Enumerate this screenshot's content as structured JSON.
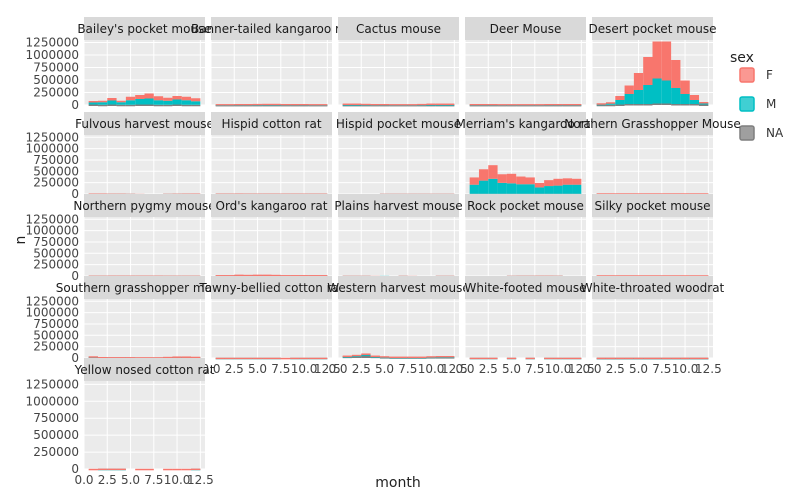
{
  "chart_data": {
    "type": "bar",
    "layout": "facet_wrap",
    "xlabel": "month",
    "ylabel": "n",
    "xlim": [
      0,
      13
    ],
    "ylim": [
      0,
      1300000
    ],
    "x_ticks": [
      "0.0",
      "2.5",
      "5.0",
      "7.5",
      "10.0",
      "12.5"
    ],
    "x_tick_values": [
      0,
      2.5,
      5,
      7.5,
      10,
      12.5
    ],
    "y_ticks": [
      "0",
      "250000",
      "500000",
      "750000",
      "1000000",
      "1250000"
    ],
    "y_tick_values": [
      0,
      250000,
      500000,
      750000,
      1000000,
      1250000
    ],
    "legend": {
      "title": "sex",
      "placement": "right",
      "entries": [
        {
          "label": "F",
          "color": "#F8766D"
        },
        {
          "label": "M",
          "color": "#00BFC4"
        },
        {
          "label": "NA",
          "color": "#7F7F7F"
        }
      ]
    },
    "colors": {
      "F": "#F8766D",
      "M": "#00BFC4",
      "NA": "#7F7F7F"
    },
    "stack_order": [
      "NA",
      "M",
      "F"
    ],
    "months": [
      1,
      2,
      3,
      4,
      5,
      6,
      7,
      8,
      9,
      10,
      11,
      12
    ],
    "facets": [
      {
        "title": "Bailey's pocket mouse",
        "M": [
          40000,
          50000,
          80000,
          50000,
          90000,
          110000,
          120000,
          90000,
          80000,
          100000,
          90000,
          70000
        ],
        "F": [
          30000,
          30000,
          50000,
          30000,
          70000,
          80000,
          100000,
          80000,
          60000,
          70000,
          70000,
          60000
        ],
        "NA": [
          10000,
          5000,
          10000,
          5000,
          5000,
          10000,
          10000,
          5000,
          5000,
          10000,
          5000,
          5000
        ]
      },
      {
        "title": "Banner-tailed kangaroo rat",
        "M": [
          8000,
          8000,
          10000,
          10000,
          10000,
          12000,
          12000,
          10000,
          10000,
          10000,
          8000,
          8000
        ],
        "F": [
          8000,
          8000,
          8000,
          8000,
          10000,
          10000,
          10000,
          8000,
          8000,
          8000,
          8000,
          8000
        ],
        "NA": [
          2000,
          2000,
          2000,
          2000,
          2000,
          2000,
          2000,
          2000,
          2000,
          2000,
          2000,
          2000
        ]
      },
      {
        "title": "Cactus mouse",
        "M": [
          15000,
          15000,
          12000,
          10000,
          10000,
          8000,
          8000,
          8000,
          10000,
          15000,
          15000,
          15000
        ],
        "F": [
          12000,
          12000,
          10000,
          8000,
          8000,
          8000,
          8000,
          8000,
          10000,
          12000,
          12000,
          12000
        ],
        "NA": [
          2000,
          2000,
          2000,
          2000,
          2000,
          2000,
          2000,
          2000,
          2000,
          2000,
          2000,
          2000
        ]
      },
      {
        "title": "Deer Mouse",
        "M": [
          10000,
          10000,
          10000,
          8000,
          8000,
          8000,
          8000,
          8000,
          10000,
          10000,
          10000,
          10000
        ],
        "F": [
          8000,
          8000,
          8000,
          8000,
          8000,
          8000,
          8000,
          8000,
          8000,
          8000,
          8000,
          8000
        ],
        "NA": [
          2000,
          2000,
          2000,
          2000,
          2000,
          2000,
          2000,
          2000,
          2000,
          2000,
          2000,
          2000
        ]
      },
      {
        "title": "Desert pocket mouse",
        "M": [
          20000,
          30000,
          90000,
          200000,
          280000,
          380000,
          500000,
          460000,
          320000,
          200000,
          80000,
          30000
        ],
        "F": [
          10000,
          20000,
          80000,
          170000,
          340000,
          560000,
          740000,
          780000,
          560000,
          270000,
          100000,
          20000
        ],
        "NA": [
          5000,
          5000,
          10000,
          20000,
          20000,
          20000,
          30000,
          30000,
          20000,
          20000,
          20000,
          10000
        ]
      },
      {
        "title": "Fulvous harvest mouse",
        "M": [
          5000,
          5000,
          4000,
          4000,
          3000,
          0,
          0,
          0,
          3000,
          4000,
          5000,
          5000
        ],
        "F": [
          5000,
          5000,
          4000,
          4000,
          3000,
          3000,
          0,
          0,
          3000,
          4000,
          4000,
          5000
        ],
        "NA": [
          0,
          0,
          0,
          0,
          0,
          0,
          0,
          0,
          0,
          0,
          0,
          0
        ]
      },
      {
        "title": "Hispid cotton rat",
        "M": [
          4000,
          4000,
          4000,
          4000,
          4000,
          4000,
          4000,
          4000,
          4000,
          4000,
          4000,
          4000
        ],
        "F": [
          4000,
          4000,
          4000,
          4000,
          4000,
          4000,
          4000,
          4000,
          4000,
          4000,
          4000,
          4000
        ],
        "NA": [
          1000,
          1000,
          2000,
          1000,
          1000,
          1000,
          1000,
          1000,
          1000,
          1000,
          1000,
          1000
        ]
      },
      {
        "title": "Hispid pocket mouse",
        "M": [
          0,
          0,
          0,
          0,
          3000,
          3000,
          3000,
          3000,
          3000,
          3000,
          3000,
          3000
        ],
        "F": [
          0,
          0,
          0,
          0,
          3000,
          3000,
          3000,
          3000,
          3000,
          3000,
          3000,
          3000
        ],
        "NA": [
          0,
          0,
          0,
          0,
          0,
          0,
          0,
          0,
          0,
          0,
          0,
          0
        ]
      },
      {
        "title": "Merriam's kangaroo rat",
        "M": [
          200000,
          290000,
          330000,
          240000,
          230000,
          210000,
          210000,
          140000,
          170000,
          180000,
          200000,
          200000
        ],
        "F": [
          160000,
          250000,
          300000,
          190000,
          210000,
          170000,
          150000,
          100000,
          130000,
          150000,
          140000,
          130000
        ],
        "NA": [
          5000,
          5000,
          5000,
          5000,
          5000,
          5000,
          5000,
          5000,
          5000,
          5000,
          5000,
          5000
        ]
      },
      {
        "title": "Northern Grasshopper Mouse",
        "M": [
          8000,
          8000,
          8000,
          8000,
          8000,
          8000,
          8000,
          8000,
          8000,
          8000,
          8000,
          8000
        ],
        "F": [
          6000,
          6000,
          6000,
          6000,
          6000,
          6000,
          6000,
          6000,
          6000,
          6000,
          6000,
          6000
        ],
        "NA": [
          1000,
          1000,
          1000,
          1000,
          1000,
          1000,
          1000,
          1000,
          1000,
          1000,
          1000,
          1000
        ]
      },
      {
        "title": "Northern pygmy mouse",
        "M": [
          4000,
          4000,
          5000,
          5000,
          5000,
          5000,
          5000,
          5000,
          4000,
          4000,
          4000,
          4000
        ],
        "F": [
          4000,
          4000,
          4000,
          4000,
          4000,
          4000,
          4000,
          4000,
          4000,
          4000,
          4000,
          4000
        ],
        "NA": [
          0,
          0,
          0,
          0,
          0,
          0,
          0,
          0,
          0,
          0,
          0,
          0
        ]
      },
      {
        "title": "Ord's kangaroo rat",
        "M": [
          10000,
          10000,
          12000,
          12000,
          12000,
          12000,
          12000,
          10000,
          10000,
          10000,
          10000,
          10000
        ],
        "F": [
          8000,
          8000,
          10000,
          10000,
          10000,
          10000,
          10000,
          8000,
          8000,
          8000,
          8000,
          8000
        ],
        "NA": [
          2000,
          2000,
          8000,
          4000,
          8000,
          8000,
          4000,
          2000,
          2000,
          2000,
          2000,
          2000
        ]
      },
      {
        "title": "Plains harvest mouse",
        "M": [
          3000,
          3000,
          3000,
          0,
          3000,
          0,
          3000,
          0,
          0,
          0,
          3000,
          3000
        ],
        "F": [
          3000,
          3000,
          3000,
          3000,
          0,
          0,
          3000,
          3000,
          0,
          0,
          3000,
          3000
        ],
        "NA": [
          0,
          0,
          0,
          0,
          0,
          0,
          0,
          0,
          0,
          0,
          0,
          0
        ]
      },
      {
        "title": "Rock pocket mouse",
        "M": [
          0,
          0,
          0,
          0,
          3000,
          4000,
          4000,
          4000,
          4000,
          4000,
          0,
          0
        ],
        "F": [
          0,
          0,
          0,
          0,
          3000,
          3000,
          3000,
          4000,
          4000,
          3000,
          0,
          0
        ],
        "NA": [
          0,
          0,
          0,
          0,
          0,
          0,
          0,
          0,
          0,
          0,
          0,
          0
        ]
      },
      {
        "title": "Silky pocket mouse",
        "M": [
          8000,
          8000,
          8000,
          8000,
          8000,
          8000,
          8000,
          8000,
          8000,
          8000,
          8000,
          8000
        ],
        "F": [
          6000,
          6000,
          6000,
          6000,
          6000,
          6000,
          6000,
          6000,
          6000,
          6000,
          6000,
          6000
        ],
        "NA": [
          2000,
          2000,
          2000,
          2000,
          2000,
          2000,
          2000,
          2000,
          2000,
          2000,
          2000,
          2000
        ]
      },
      {
        "title": "Southern grasshopper mouse",
        "M": [
          10000,
          8000,
          8000,
          8000,
          8000,
          8000,
          8000,
          8000,
          10000,
          12000,
          12000,
          10000
        ],
        "F": [
          8000,
          6000,
          6000,
          6000,
          6000,
          6000,
          6000,
          6000,
          8000,
          10000,
          10000,
          8000
        ],
        "NA": [
          20000,
          8000,
          6000,
          6000,
          6000,
          4000,
          4000,
          4000,
          8000,
          12000,
          12000,
          10000
        ]
      },
      {
        "title": "Tawny-bellied cotton rat",
        "M": [
          4000,
          4000,
          4000,
          4000,
          4000,
          4000,
          4000,
          0,
          4000,
          4000,
          4000,
          4000
        ],
        "F": [
          3000,
          3000,
          3000,
          3000,
          3000,
          3000,
          3000,
          4000,
          3000,
          3000,
          3000,
          3000
        ],
        "NA": [
          0,
          0,
          0,
          0,
          0,
          0,
          0,
          0,
          0,
          0,
          0,
          0
        ]
      },
      {
        "title": "Western harvest mouse",
        "M": [
          12000,
          15000,
          20000,
          12000,
          10000,
          8000,
          8000,
          8000,
          8000,
          10000,
          12000,
          12000
        ],
        "F": [
          12000,
          15000,
          20000,
          12000,
          10000,
          8000,
          8000,
          8000,
          8000,
          10000,
          12000,
          12000
        ],
        "NA": [
          30000,
          40000,
          60000,
          30000,
          20000,
          15000,
          15000,
          15000,
          15000,
          20000,
          20000,
          20000
        ]
      },
      {
        "title": "White-footed mouse",
        "M": [
          4000,
          4000,
          4000,
          0,
          4000,
          0,
          4000,
          0,
          4000,
          4000,
          4000,
          4000
        ],
        "F": [
          3000,
          3000,
          3000,
          0,
          3000,
          0,
          3000,
          0,
          3000,
          3000,
          3000,
          3000
        ],
        "NA": [
          0,
          0,
          0,
          0,
          0,
          0,
          0,
          0,
          0,
          0,
          0,
          0
        ]
      },
      {
        "title": "White-throated woodrat",
        "M": [
          4000,
          4000,
          4000,
          4000,
          4000,
          4000,
          4000,
          4000,
          4000,
          4000,
          4000,
          4000
        ],
        "F": [
          3000,
          3000,
          3000,
          3000,
          3000,
          3000,
          3000,
          3000,
          3000,
          3000,
          3000,
          3000
        ],
        "NA": [
          1000,
          1000,
          1000,
          1000,
          1000,
          1000,
          1000,
          1000,
          1000,
          1000,
          1000,
          1000
        ]
      },
      {
        "title": "Yellow nosed cotton rat",
        "M": [
          0,
          3000,
          3000,
          3000,
          0,
          0,
          0,
          0,
          0,
          0,
          0,
          3000
        ],
        "F": [
          3000,
          3000,
          3000,
          3000,
          0,
          3000,
          3000,
          0,
          3000,
          3000,
          3000,
          3000
        ],
        "NA": [
          0,
          0,
          0,
          0,
          0,
          0,
          0,
          0,
          0,
          0,
          0,
          0
        ]
      }
    ]
  }
}
